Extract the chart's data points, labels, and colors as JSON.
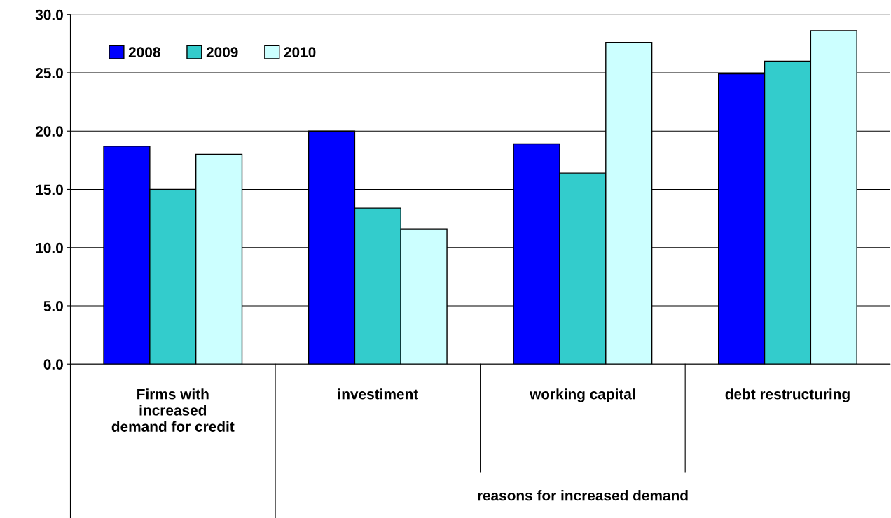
{
  "chart_data": {
    "type": "bar",
    "categories": [
      "Firms with\nincreased\ndemand for credit",
      "investiment",
      "working capital",
      "debt restructuring"
    ],
    "series": [
      {
        "name": "2008",
        "color": "#0000ff",
        "values": [
          18.7,
          20.0,
          18.9,
          24.9
        ]
      },
      {
        "name": "2009",
        "color": "#33cccc",
        "values": [
          15.0,
          13.4,
          16.4,
          26.0
        ]
      },
      {
        "name": "2010",
        "color": "#ccffff",
        "values": [
          18.0,
          11.6,
          27.6,
          28.6
        ]
      }
    ],
    "annotations": [
      "reasons for increased demand"
    ],
    "ylim": [
      0,
      30
    ],
    "yticks": [
      {
        "value": 0,
        "label": "0.0"
      },
      {
        "value": 5,
        "label": "5.0"
      },
      {
        "value": 10,
        "label": "10.0"
      },
      {
        "value": 15,
        "label": "15.0"
      },
      {
        "value": 20,
        "label": "20.0"
      },
      {
        "value": 25,
        "label": "25.0"
      },
      {
        "value": 30,
        "label": "30.0"
      }
    ],
    "grid": "y",
    "legend": "top left"
  }
}
